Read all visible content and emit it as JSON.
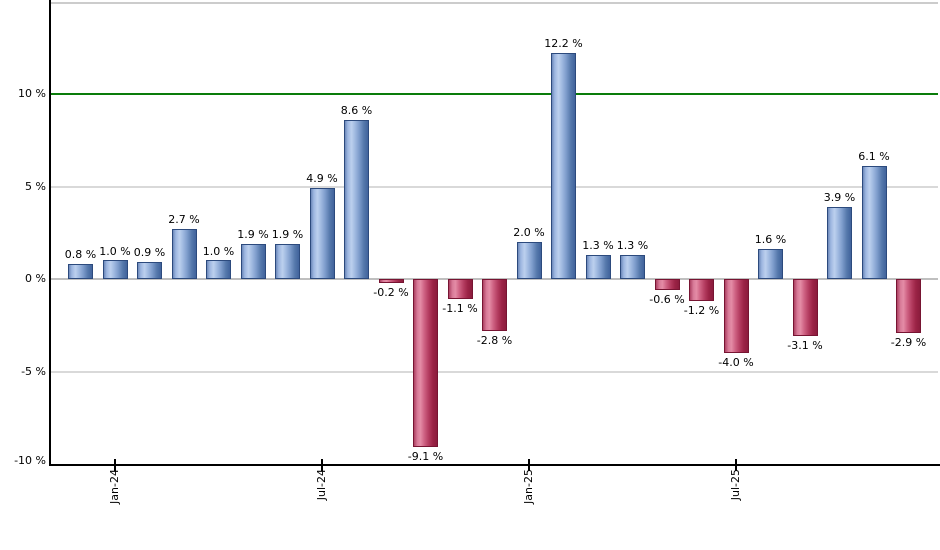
{
  "chart_data": {
    "type": "bar",
    "title": "",
    "xlabel": "",
    "ylabel": "",
    "unit": "%",
    "grid": true,
    "legend": "none",
    "ylim": [
      -10.1,
      14.7
    ],
    "values": [
      0.8,
      1.0,
      0.9,
      2.7,
      1.0,
      1.9,
      1.9,
      4.9,
      8.6,
      -0.2,
      -9.1,
      -1.1,
      -2.8,
      2.0,
      12.2,
      1.3,
      1.3,
      -0.6,
      -1.2,
      -4.0,
      1.6,
      -3.1,
      3.9,
      6.1,
      -2.9
    ],
    "bar_labels": [
      "0.8 %",
      "1.0 %",
      "0.9 %",
      "2.7 %",
      "1.0 %",
      "1.9 %",
      "1.9 %",
      "4.9 %",
      "8.6 %",
      "-0.2 %",
      "-9.1 %",
      "-1.1 %",
      "-2.8 %",
      "2.0 %",
      "12.2 %",
      "1.3 %",
      "1.3 %",
      "-0.6 %",
      "-1.2 %",
      "-4.0 %",
      "1.6 %",
      "-3.1 %",
      "3.9 %",
      "6.1 %",
      "-2.9 %"
    ],
    "x_ticks": [
      {
        "label": "Jan-24",
        "bar_index": 1
      },
      {
        "label": "Jul-24",
        "bar_index": 7
      },
      {
        "label": "Jan-25",
        "bar_index": 13
      },
      {
        "label": "Jul-25",
        "bar_index": 19
      }
    ],
    "y_ticks": [
      {
        "label": "10 %",
        "value": 10
      },
      {
        "label": "5 %",
        "value": 5
      },
      {
        "label": "0 %",
        "value": 0
      },
      {
        "label": "-5 %",
        "value": -5
      },
      {
        "label": "-10 %",
        "value": -10
      }
    ],
    "threshold_line": {
      "value": 10,
      "color": "#0a7c0a"
    }
  },
  "colors": {
    "background": "#ffffff",
    "positive_bar_light": "#bcd0ee",
    "positive_bar_dark": "#41639c",
    "positive_bar_border": "#2c4a7d",
    "negative_bar_light": "#e48ca6",
    "negative_bar_dark": "#8b1c3d",
    "negative_bar_border": "#771432",
    "threshold_green": "#0a7c0a",
    "gridline": "#d9d9d9",
    "zero_line": "#bfbfbf",
    "top_border": "#cccccc",
    "axis": "#000000",
    "label_text": "#000000"
  }
}
